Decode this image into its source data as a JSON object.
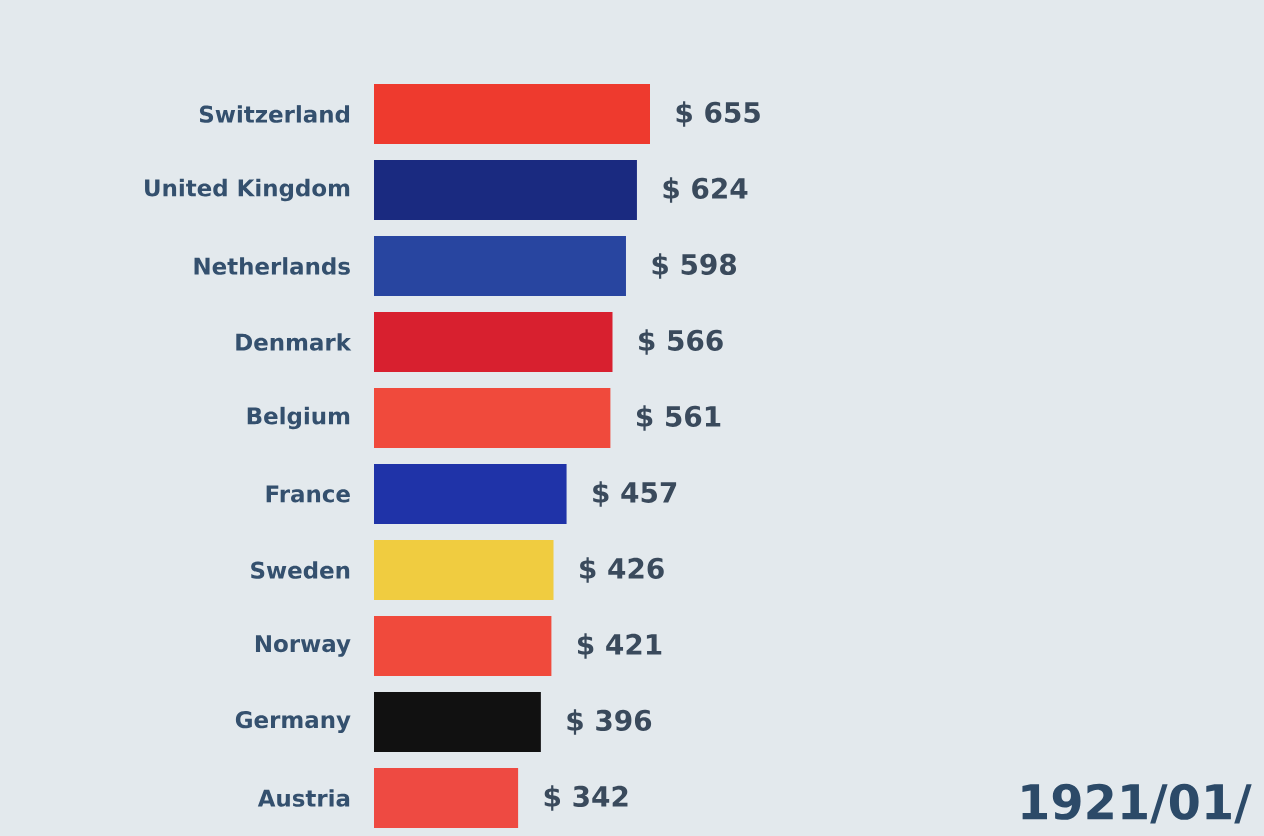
{
  "chart_data": {
    "type": "bar",
    "orientation": "horizontal",
    "categories": [
      "Switzerland",
      "United Kingdom",
      "Netherlands",
      "Denmark",
      "Belgium",
      "France",
      "Sweden",
      "Norway",
      "Germany",
      "Austria"
    ],
    "values": [
      655,
      624,
      598,
      566,
      561,
      457,
      426,
      421,
      396,
      342
    ],
    "colors": [
      "#ee3a2e",
      "#1a2a80",
      "#2845a0",
      "#d8202f",
      "#f04a3c",
      "#1f33a8",
      "#f0cc40",
      "#f04a3c",
      "#111111",
      "#ee4a42"
    ],
    "value_labels": [
      "$ 655",
      "$ 624",
      "$ 598",
      "$ 566",
      "$ 561",
      "$ 457",
      "$ 426",
      "$ 421",
      "$ 396",
      "$ 342"
    ],
    "annotations": [
      "1921/01/"
    ]
  }
}
